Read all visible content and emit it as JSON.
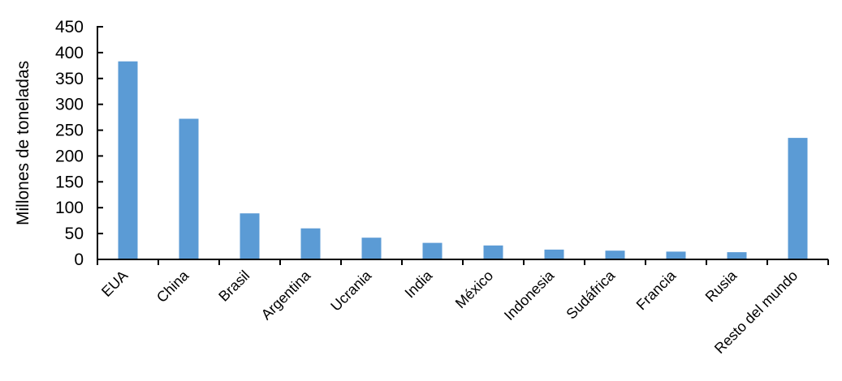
{
  "chart_data": {
    "type": "bar",
    "title": "",
    "ylabel": "Millones de toneladas",
    "xlabel": "",
    "categories": [
      "EUA",
      "China",
      "Brasil",
      "Argentina",
      "Ucrania",
      "India",
      "México",
      "Indonesia",
      "Sudáfrica",
      "Francia",
      "Rusia",
      "Resto del mundo"
    ],
    "values": [
      383,
      272,
      89,
      60,
      42,
      32,
      27,
      19,
      17,
      15,
      14,
      235
    ],
    "ylim": [
      0,
      450
    ],
    "ytick_step": 50,
    "ytick_labels": [
      "0",
      "50",
      "100",
      "150",
      "200",
      "250",
      "300",
      "350",
      "400",
      "450"
    ],
    "grid": false,
    "legend": "none",
    "x_label_rotation_deg": -45,
    "bar_color": "#5B9BD5",
    "axis_color": "#000000",
    "text_color": "#000000",
    "background_color": "#FFFFFF"
  }
}
